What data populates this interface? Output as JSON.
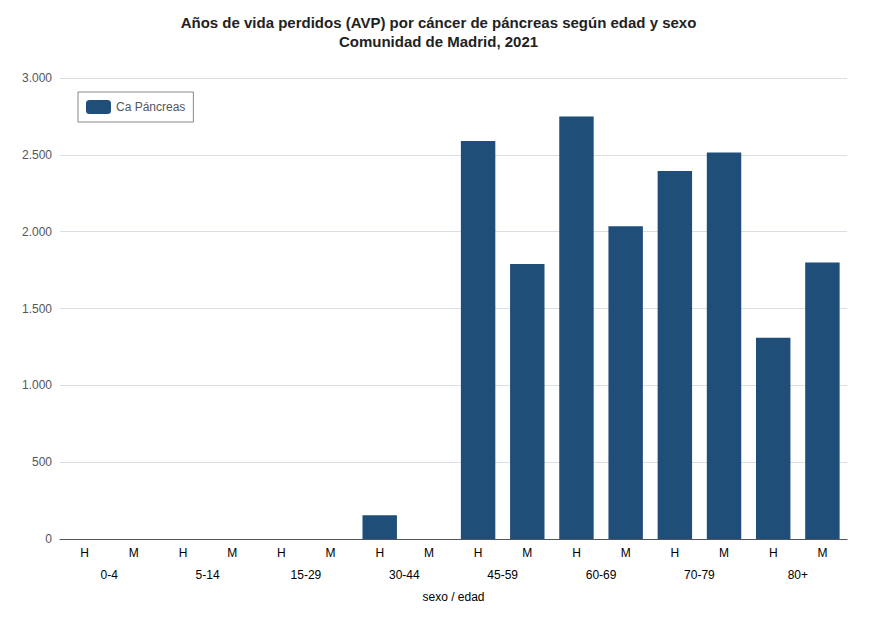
{
  "chart_data": {
    "type": "bar",
    "title": "Años de vida perdidos (AVP) por cáncer de páncreas según edad y sexo",
    "subtitle": "Comunidad de Madrid, 2021",
    "xlabel": "sexo / edad",
    "categories": [
      "0-4",
      "5-14",
      "15-29",
      "30-44",
      "45-59",
      "60-69",
      "70-79",
      "80+"
    ],
    "series": [
      {
        "name": "H",
        "values": [
          0,
          0,
          0,
          155,
          2590,
          2750,
          2395,
          1310
        ]
      },
      {
        "name": "M",
        "values": [
          0,
          0,
          0,
          0,
          1790,
          2035,
          2515,
          1800
        ]
      }
    ],
    "color": "#1F4E79",
    "legend_label": "Ca Páncreas",
    "legend": "upper left",
    "ylim": [
      0,
      3000
    ],
    "yticks": [
      0,
      500,
      {
        "value": 1000,
        "label": "1.000"
      },
      {
        "value": 1500,
        "label": "1.500"
      },
      {
        "value": 2000,
        "label": "2.000"
      },
      {
        "value": 2500,
        "label": "2.500"
      },
      {
        "value": 3000,
        "label": "3.000"
      }
    ],
    "grid": true
  }
}
